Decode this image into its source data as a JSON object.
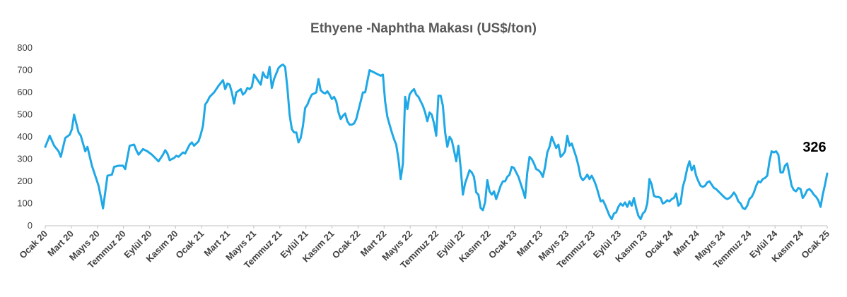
{
  "chart_data": {
    "type": "line",
    "title": "Ethyene -Naphtha Makası (US$/ton)",
    "xlabel": "",
    "ylabel": "",
    "ylim": [
      0,
      800
    ],
    "y_ticks": [
      "0",
      "100",
      "200",
      "300",
      "400",
      "500",
      "600",
      "700",
      "800"
    ],
    "x_tick_labels": [
      "Ocak 20",
      "Mart 20",
      "Mayıs 20",
      "Temmuz 20",
      "Eylül 20",
      "Kasım 20",
      "Ocak 21",
      "Mart 21",
      "Mayıs 21",
      "Temmuz 21",
      "Eylül 21",
      "Kasım 21",
      "Ocak 22",
      "Mart 22",
      "Mayıs 22",
      "Temmuz 22",
      "Eylül 22",
      "Kasım 22",
      "Ocak 23",
      "Mart 23",
      "Mayıs 23",
      "Temmuz 23",
      "Eylül 23",
      "Kasım 23",
      "Ocak 24",
      "Mart 24",
      "Mayıs 24",
      "Temmuz 24",
      "Eylül 24",
      "Kasım 24",
      "Ocak 25"
    ],
    "x_range_weeks": [
      0,
      262
    ],
    "grid": false,
    "legend": "none",
    "line_color": "#1fa8e6",
    "callout_label": "326",
    "series": [
      {
        "values": [
          [
            0,
            355
          ],
          [
            2,
            405
          ],
          [
            4,
            360
          ],
          [
            6,
            335
          ],
          [
            7,
            310
          ],
          [
            9,
            395
          ],
          [
            11,
            410
          ],
          [
            12,
            435
          ],
          [
            13,
            500
          ],
          [
            14,
            460
          ],
          [
            15,
            420
          ],
          [
            16,
            405
          ],
          [
            17,
            370
          ],
          [
            18,
            335
          ],
          [
            19,
            355
          ],
          [
            21,
            270
          ],
          [
            23,
            210
          ],
          [
            24,
            180
          ],
          [
            25,
            130
          ],
          [
            26,
            78
          ],
          [
            27,
            150
          ],
          [
            28,
            225
          ],
          [
            30,
            230
          ],
          [
            31,
            265
          ],
          [
            33,
            270
          ],
          [
            35,
            270
          ],
          [
            36,
            255
          ],
          [
            38,
            360
          ],
          [
            40,
            365
          ],
          [
            41,
            340
          ],
          [
            42,
            320
          ],
          [
            44,
            345
          ],
          [
            46,
            335
          ],
          [
            48,
            320
          ],
          [
            50,
            300
          ],
          [
            51,
            290
          ],
          [
            53,
            320
          ],
          [
            54,
            340
          ],
          [
            55,
            325
          ],
          [
            56,
            295
          ],
          [
            58,
            305
          ],
          [
            59,
            315
          ],
          [
            60,
            310
          ],
          [
            62,
            330
          ],
          [
            63,
            325
          ],
          [
            65,
            365
          ],
          [
            66,
            375
          ],
          [
            67,
            360
          ],
          [
            68,
            370
          ],
          [
            69,
            380
          ],
          [
            70,
            410
          ],
          [
            71,
            450
          ],
          [
            72,
            545
          ],
          [
            73,
            560
          ],
          [
            74,
            580
          ],
          [
            76,
            600
          ],
          [
            78,
            630
          ],
          [
            80,
            655
          ],
          [
            81,
            615
          ],
          [
            82,
            640
          ],
          [
            83,
            635
          ],
          [
            84,
            600
          ],
          [
            85,
            550
          ],
          [
            86,
            600
          ],
          [
            88,
            615
          ],
          [
            89,
            590
          ],
          [
            90,
            600
          ],
          [
            91,
            620
          ],
          [
            92,
            615
          ],
          [
            93,
            625
          ],
          [
            94,
            680
          ],
          [
            95,
            665
          ],
          [
            96,
            650
          ],
          [
            97,
            635
          ],
          [
            98,
            690
          ],
          [
            99,
            670
          ],
          [
            100,
            665
          ],
          [
            101,
            715
          ],
          [
            102,
            620
          ],
          [
            103,
            660
          ],
          [
            105,
            710
          ],
          [
            106,
            720
          ],
          [
            107,
            725
          ],
          [
            108,
            715
          ],
          [
            109,
            620
          ],
          [
            110,
            500
          ],
          [
            111,
            435
          ],
          [
            112,
            420
          ],
          [
            113,
            420
          ],
          [
            114,
            375
          ],
          [
            115,
            395
          ],
          [
            116,
            450
          ],
          [
            117,
            530
          ],
          [
            118,
            545
          ],
          [
            119,
            570
          ],
          [
            120,
            590
          ],
          [
            121,
            595
          ],
          [
            122,
            600
          ],
          [
            123,
            660
          ],
          [
            124,
            610
          ],
          [
            125,
            600
          ],
          [
            126,
            595
          ],
          [
            127,
            605
          ],
          [
            128,
            590
          ],
          [
            129,
            570
          ],
          [
            130,
            580
          ],
          [
            131,
            560
          ],
          [
            132,
            510
          ],
          [
            133,
            480
          ],
          [
            134,
            495
          ],
          [
            135,
            505
          ],
          [
            136,
            470
          ],
          [
            137,
            455
          ],
          [
            138,
            455
          ],
          [
            139,
            460
          ],
          [
            140,
            480
          ],
          [
            141,
            520
          ],
          [
            142,
            560
          ],
          [
            143,
            600
          ],
          [
            144,
            600
          ],
          [
            145,
            650
          ],
          [
            146,
            700
          ],
          [
            148,
            690
          ],
          [
            150,
            680
          ],
          [
            151,
            675
          ],
          [
            152,
            680
          ],
          [
            153,
            560
          ],
          [
            154,
            490
          ],
          [
            155,
            455
          ],
          [
            156,
            420
          ],
          [
            157,
            390
          ],
          [
            158,
            365
          ],
          [
            159,
            300
          ],
          [
            160,
            210
          ],
          [
            161,
            280
          ],
          [
            162,
            580
          ],
          [
            163,
            525
          ],
          [
            164,
            590
          ],
          [
            165,
            605
          ],
          [
            166,
            615
          ],
          [
            167,
            590
          ],
          [
            168,
            580
          ],
          [
            169,
            560
          ],
          [
            170,
            540
          ],
          [
            171,
            510
          ],
          [
            172,
            470
          ],
          [
            173,
            510
          ],
          [
            174,
            500
          ],
          [
            175,
            460
          ],
          [
            176,
            405
          ],
          [
            177,
            585
          ],
          [
            178,
            585
          ],
          [
            179,
            540
          ],
          [
            180,
            420
          ],
          [
            181,
            355
          ],
          [
            182,
            400
          ],
          [
            183,
            385
          ],
          [
            184,
            340
          ],
          [
            185,
            290
          ],
          [
            186,
            360
          ],
          [
            187,
            260
          ],
          [
            188,
            140
          ],
          [
            189,
            190
          ],
          [
            190,
            220
          ],
          [
            191,
            250
          ],
          [
            192,
            240
          ],
          [
            193,
            220
          ],
          [
            194,
            150
          ],
          [
            195,
            140
          ],
          [
            196,
            80
          ],
          [
            197,
            70
          ],
          [
            198,
            105
          ],
          [
            199,
            205
          ],
          [
            200,
            155
          ],
          [
            201,
            140
          ],
          [
            202,
            155
          ],
          [
            203,
            120
          ],
          [
            204,
            150
          ],
          [
            205,
            180
          ],
          [
            206,
            200
          ],
          [
            207,
            200
          ],
          [
            208,
            220
          ],
          [
            209,
            230
          ],
          [
            210,
            265
          ],
          [
            211,
            260
          ],
          [
            212,
            240
          ],
          [
            213,
            220
          ],
          [
            214,
            190
          ],
          [
            215,
            160
          ],
          [
            216,
            125
          ],
          [
            217,
            240
          ],
          [
            218,
            310
          ],
          [
            219,
            300
          ],
          [
            220,
            280
          ],
          [
            221,
            255
          ],
          [
            222,
            250
          ],
          [
            223,
            240
          ],
          [
            224,
            220
          ],
          [
            225,
            265
          ],
          [
            226,
            330
          ],
          [
            227,
            355
          ],
          [
            228,
            400
          ],
          [
            229,
            375
          ],
          [
            230,
            350
          ],
          [
            231,
            365
          ],
          [
            232,
            310
          ],
          [
            233,
            320
          ],
          [
            234,
            335
          ],
          [
            235,
            405
          ],
          [
            236,
            360
          ],
          [
            237,
            370
          ],
          [
            238,
            340
          ],
          [
            239,
            310
          ],
          [
            240,
            270
          ],
          [
            241,
            220
          ],
          [
            242,
            205
          ],
          [
            243,
            215
          ],
          [
            244,
            230
          ],
          [
            245,
            210
          ],
          [
            246,
            225
          ],
          [
            247,
            205
          ],
          [
            248,
            180
          ],
          [
            249,
            145
          ],
          [
            250,
            110
          ],
          [
            251,
            115
          ],
          [
            252,
            95
          ],
          [
            253,
            70
          ],
          [
            254,
            45
          ],
          [
            255,
            30
          ],
          [
            256,
            55
          ],
          [
            257,
            60
          ],
          [
            258,
            85
          ],
          [
            259,
            100
          ],
          [
            260,
            90
          ],
          [
            261,
            105
          ],
          [
            262,
            85
          ],
          [
            263,
            110
          ],
          [
            264,
            90
          ],
          [
            265,
            125
          ],
          [
            266,
            80
          ],
          [
            267,
            45
          ],
          [
            268,
            30
          ],
          [
            269,
            55
          ],
          [
            270,
            65
          ],
          [
            271,
            100
          ],
          [
            272,
            210
          ],
          [
            273,
            185
          ],
          [
            274,
            135
          ],
          [
            275,
            130
          ],
          [
            276,
            130
          ],
          [
            277,
            125
          ],
          [
            278,
            100
          ],
          [
            279,
            105
          ],
          [
            280,
            115
          ],
          [
            281,
            110
          ],
          [
            282,
            120
          ],
          [
            283,
            125
          ],
          [
            284,
            145
          ],
          [
            285,
            90
          ],
          [
            286,
            100
          ],
          [
            287,
            175
          ],
          [
            288,
            210
          ],
          [
            289,
            260
          ],
          [
            290,
            290
          ],
          [
            291,
            250
          ],
          [
            292,
            270
          ],
          [
            293,
            225
          ],
          [
            294,
            200
          ],
          [
            295,
            180
          ],
          [
            296,
            175
          ],
          [
            297,
            180
          ],
          [
            298,
            195
          ],
          [
            299,
            200
          ],
          [
            300,
            185
          ],
          [
            301,
            170
          ],
          [
            302,
            165
          ],
          [
            303,
            155
          ],
          [
            304,
            145
          ],
          [
            305,
            135
          ],
          [
            306,
            125
          ],
          [
            307,
            120
          ],
          [
            308,
            125
          ],
          [
            309,
            135
          ],
          [
            310,
            150
          ],
          [
            311,
            135
          ],
          [
            312,
            110
          ],
          [
            313,
            100
          ],
          [
            314,
            80
          ],
          [
            315,
            75
          ],
          [
            316,
            90
          ],
          [
            317,
            120
          ],
          [
            318,
            130
          ],
          [
            319,
            150
          ],
          [
            320,
            180
          ],
          [
            321,
            200
          ],
          [
            322,
            195
          ],
          [
            323,
            210
          ],
          [
            324,
            215
          ],
          [
            325,
            225
          ],
          [
            326,
            290
          ],
          [
            327,
            335
          ],
          [
            328,
            330
          ],
          [
            329,
            335
          ],
          [
            330,
            320
          ],
          [
            331,
            240
          ],
          [
            332,
            240
          ],
          [
            333,
            270
          ],
          [
            334,
            280
          ],
          [
            335,
            230
          ],
          [
            336,
            180
          ],
          [
            337,
            160
          ],
          [
            338,
            155
          ],
          [
            339,
            170
          ],
          [
            340,
            165
          ],
          [
            341,
            125
          ],
          [
            342,
            140
          ],
          [
            343,
            160
          ],
          [
            344,
            165
          ],
          [
            345,
            155
          ],
          [
            346,
            140
          ],
          [
            347,
            130
          ],
          [
            348,
            115
          ],
          [
            349,
            85
          ],
          [
            350,
            140
          ],
          [
            351,
            185
          ],
          [
            352,
            235
          ]
        ]
      }
    ]
  }
}
